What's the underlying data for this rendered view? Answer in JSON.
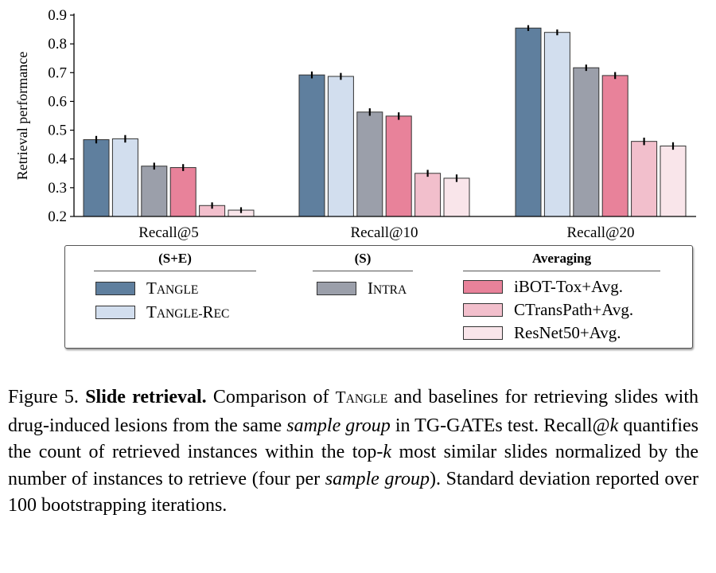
{
  "chart_data": {
    "type": "bar",
    "ylabel": "Retrieval performance",
    "ylim": [
      0.2,
      0.9
    ],
    "yticks": [
      "0.2",
      "0.3",
      "0.4",
      "0.5",
      "0.6",
      "0.7",
      "0.8",
      "0.9"
    ],
    "categories": [
      "Recall@5",
      "Recall@10",
      "Recall@20"
    ],
    "error_bars": true,
    "series": [
      {
        "name": "TANGLE",
        "color": "#5f7f9e",
        "values": [
          0.467,
          0.692,
          0.855
        ],
        "errors": [
          0.013,
          0.012,
          0.01
        ]
      },
      {
        "name": "TANGLE-REC",
        "color": "#d2deee",
        "values": [
          0.47,
          0.687,
          0.84
        ],
        "errors": [
          0.013,
          0.012,
          0.01
        ]
      },
      {
        "name": "INTRA",
        "color": "#9b9faa",
        "values": [
          0.375,
          0.563,
          0.717
        ],
        "errors": [
          0.012,
          0.013,
          0.011
        ]
      },
      {
        "name": "iBOT-Tox+Avg.",
        "color": "#e8829a",
        "values": [
          0.37,
          0.549,
          0.69
        ],
        "errors": [
          0.012,
          0.013,
          0.012
        ]
      },
      {
        "name": "CTransPath+Avg.",
        "color": "#f2bfcc",
        "values": [
          0.238,
          0.35,
          0.461
        ],
        "errors": [
          0.011,
          0.012,
          0.013
        ]
      },
      {
        "name": "ResNet50+Avg.",
        "color": "#f9e5ea",
        "values": [
          0.222,
          0.333,
          0.445
        ],
        "errors": [
          0.01,
          0.013,
          0.013
        ]
      }
    ],
    "legend_position": "bottom",
    "legend_groups": [
      {
        "title": "(S+E)",
        "items": [
          0,
          1
        ]
      },
      {
        "title": "(S)",
        "items": [
          2
        ]
      },
      {
        "title": "Averaging",
        "items": [
          3,
          4,
          5
        ]
      }
    ]
  },
  "caption": {
    "label": "Figure 5.",
    "bold_title": "Slide retrieval.",
    "parts": [
      " Comparison of ",
      "TANGLE",
      " and baselines for retrieving slides with drug-induced lesions from the same ",
      "sample group",
      " in TG-GATEs test. Recall@",
      "k",
      " quantifies the count of retrieved instances within the top-",
      "k",
      " most similar slides normalized by the number of instances to retrieve (four per ",
      "sample group",
      "). Standard deviation reported over 100 bootstrapping iterations."
    ]
  }
}
